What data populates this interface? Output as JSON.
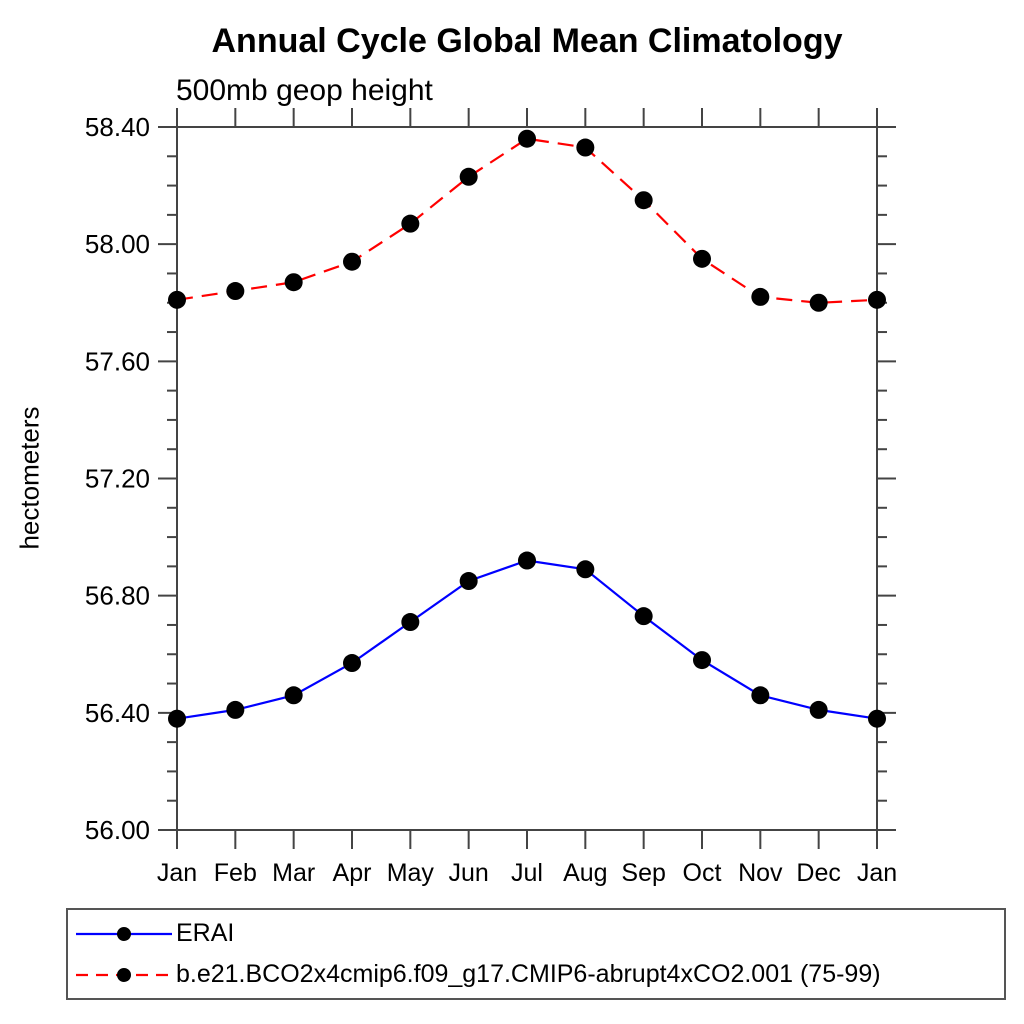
{
  "chart_data": {
    "type": "line",
    "title": "Annual Cycle Global Mean Climatology",
    "subtitle": "500mb geop height",
    "ylabel": "hectometers",
    "xlabel": "",
    "categories": [
      "Jan",
      "Feb",
      "Mar",
      "Apr",
      "May",
      "Jun",
      "Jul",
      "Aug",
      "Sep",
      "Oct",
      "Nov",
      "Dec",
      "Jan"
    ],
    "ylim": [
      56.0,
      58.4
    ],
    "ytick_interval_major": 0.4,
    "ytick_interval_minor": 0.1,
    "ytick_labels": [
      "56.00",
      "56.40",
      "56.80",
      "57.20",
      "57.60",
      "58.00",
      "58.40"
    ],
    "grid": false,
    "legend_position": "bottom-left-box",
    "axis_color": "#444444",
    "marker_color": "#000000",
    "series": [
      {
        "name": "ERAI",
        "color": "#0000ff",
        "line_style": "solid",
        "marker": "filled-circle",
        "values": [
          56.38,
          56.41,
          56.46,
          56.57,
          56.71,
          56.85,
          56.92,
          56.89,
          56.73,
          56.58,
          56.46,
          56.41,
          56.38
        ]
      },
      {
        "name": "b.e21.BCO2x4cmip6.f09_g17.CMIP6-abrupt4xCO2.001 (75-99)",
        "color": "#ff0000",
        "line_style": "dashed",
        "marker": "filled-circle",
        "values": [
          57.81,
          57.84,
          57.87,
          57.94,
          58.07,
          58.23,
          58.36,
          58.33,
          58.15,
          57.95,
          57.82,
          57.8,
          57.81
        ]
      }
    ]
  }
}
